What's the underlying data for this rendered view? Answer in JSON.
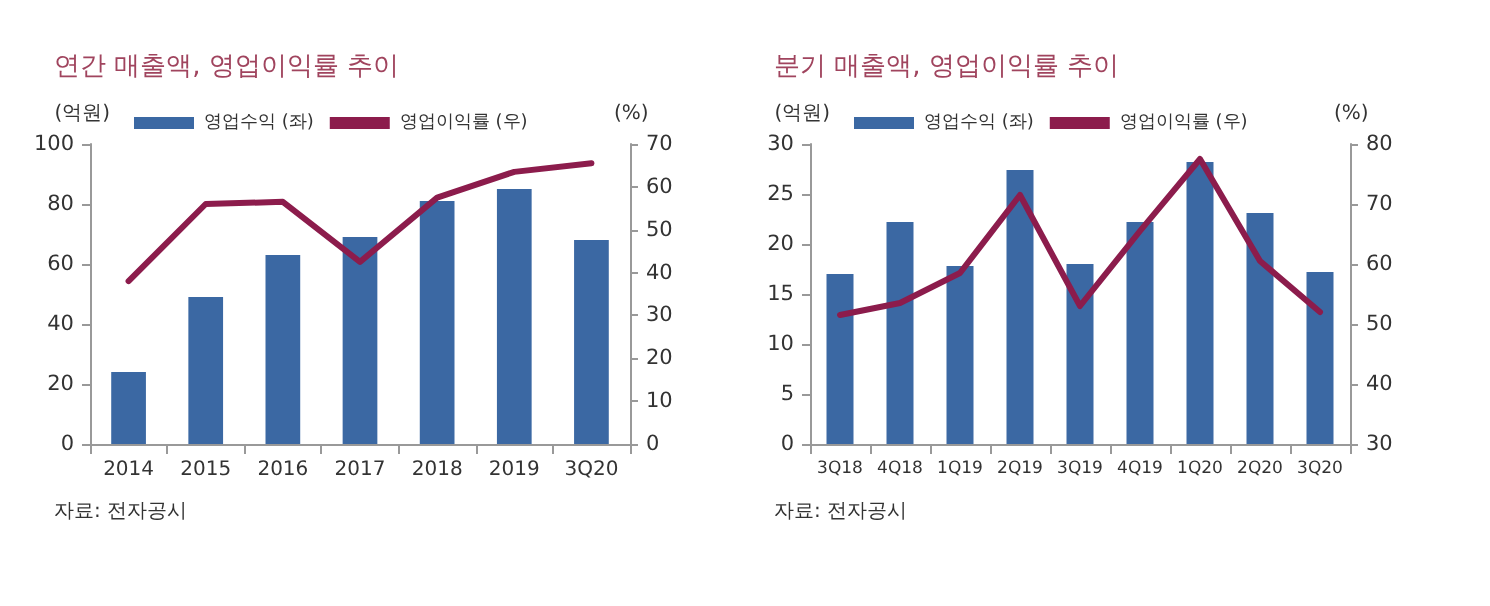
{
  "chart_data": [
    {
      "type": "bar",
      "title": "연간 매출액, 영업이익률 추이",
      "ylabel": "(억원)",
      "y2label": "(%)",
      "annotations": [
        "자료: 전자공시"
      ],
      "categories": [
        "2014",
        "2015",
        "2016",
        "2017",
        "2018",
        "2019",
        "3Q20"
      ],
      "series": [
        {
          "name": "영업수익 (좌)",
          "color": "#3b68a3",
          "values": [
            24,
            49,
            63,
            69,
            81,
            85,
            68
          ]
        },
        {
          "name": "영업이익률 (우)",
          "type": "line",
          "axis": "y2",
          "color": "#8c1c4c",
          "values": [
            38,
            56,
            56.5,
            42.5,
            57.5,
            63.5,
            65.5
          ]
        }
      ],
      "ylim": [
        0,
        100
      ],
      "yticks": [
        0,
        20,
        40,
        60,
        80,
        100
      ],
      "y2lim": [
        0,
        70
      ],
      "y2ticks": [
        0,
        10,
        20,
        30,
        40,
        50,
        60,
        70
      ],
      "grid": false,
      "legend": "top",
      "marker": "none",
      "line_style": "solid"
    },
    {
      "type": "bar",
      "title": "분기 매출액, 영업이익률 추이",
      "ylabel": "(억원)",
      "y2label": "(%)",
      "annotations": [
        "자료: 전자공시"
      ],
      "categories": [
        "3Q18",
        "4Q18",
        "1Q19",
        "2Q19",
        "3Q19",
        "4Q19",
        "1Q20",
        "2Q20",
        "3Q20"
      ],
      "series": [
        {
          "name": "영업수익 (좌)",
          "color": "#3b68a3",
          "values": [
            17,
            22.2,
            17.8,
            27.4,
            18,
            22.2,
            28.2,
            23.1,
            17.2
          ]
        },
        {
          "name": "영업이익률 (우)",
          "type": "line",
          "axis": "y2",
          "color": "#8c1c4c",
          "values": [
            51.5,
            53.5,
            58.5,
            71.5,
            53,
            65.5,
            77.5,
            60.5,
            52
          ]
        }
      ],
      "ylim": [
        0,
        30
      ],
      "yticks": [
        0,
        5,
        10,
        15,
        20,
        25,
        30
      ],
      "y2lim": [
        30,
        80
      ],
      "y2ticks": [
        30,
        40,
        50,
        60,
        70,
        80
      ],
      "grid": false,
      "legend": "top",
      "marker": "none",
      "line_style": "solid"
    }
  ]
}
